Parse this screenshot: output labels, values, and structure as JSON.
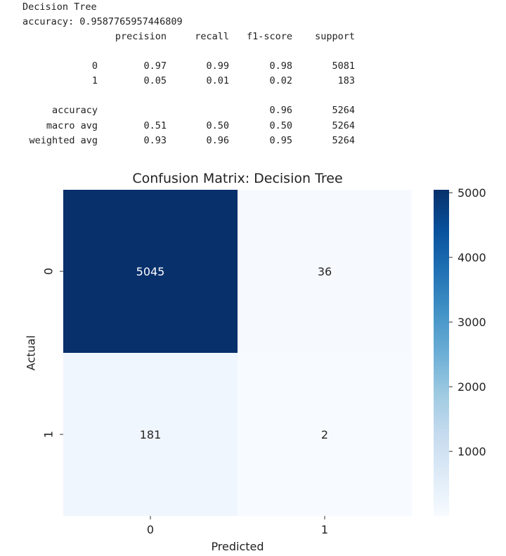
{
  "report": {
    "title": "Decision Tree",
    "accuracy_line": "accuracy: 0.9587765957446809",
    "columns": [
      "precision",
      "recall",
      "f1-score",
      "support"
    ],
    "rows": [
      {
        "label": "0",
        "precision": "0.97",
        "recall": "0.99",
        "f1": "0.98",
        "support": "5081"
      },
      {
        "label": "1",
        "precision": "0.05",
        "recall": "0.01",
        "f1": "0.02",
        "support": "183"
      },
      {
        "label": "accuracy",
        "precision": "",
        "recall": "",
        "f1": "0.96",
        "support": "5264"
      },
      {
        "label": "macro avg",
        "precision": "0.51",
        "recall": "0.50",
        "f1": "0.50",
        "support": "5264"
      },
      {
        "label": "weighted avg",
        "precision": "0.93",
        "recall": "0.96",
        "f1": "0.95",
        "support": "5264"
      }
    ]
  },
  "chart_data": {
    "type": "heatmap",
    "title": "Confusion Matrix: Decision Tree",
    "xlabel": "Predicted",
    "ylabel": "Actual",
    "x_categories": [
      "0",
      "1"
    ],
    "y_categories": [
      "0",
      "1"
    ],
    "values": [
      [
        5045,
        36
      ],
      [
        181,
        2
      ]
    ],
    "colormap": "Blues",
    "vmin": 2,
    "vmax": 5045,
    "colorbar_ticks": [
      1000,
      2000,
      3000,
      4000,
      5000
    ],
    "colors": {
      "low": "#f7fbff",
      "high": "#08306b"
    }
  }
}
